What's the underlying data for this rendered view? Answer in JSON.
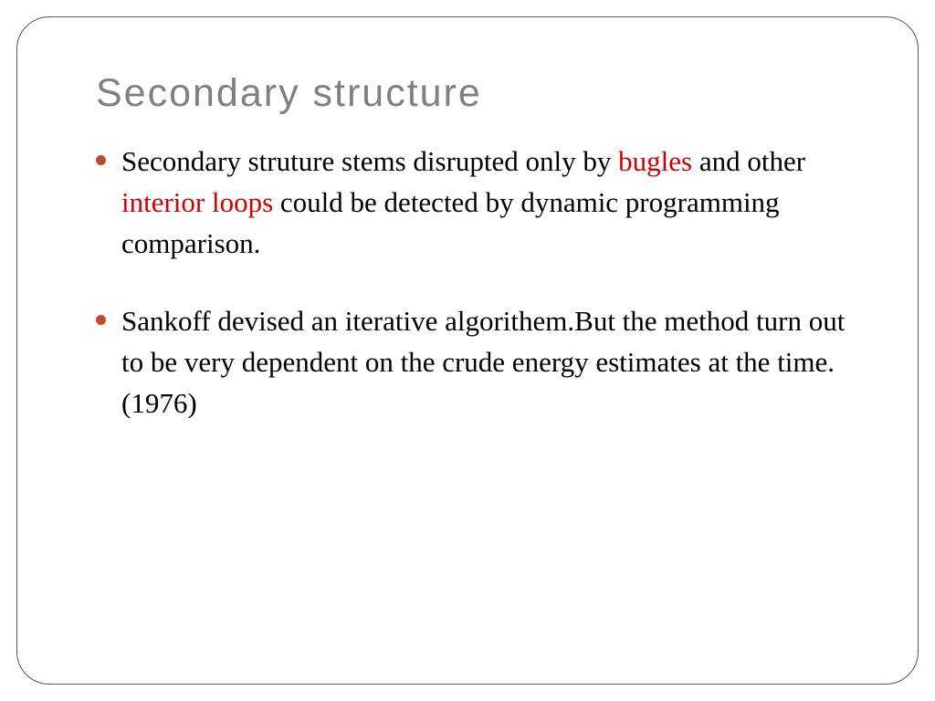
{
  "slide": {
    "title": "Secondary  structure",
    "title_color": "#808080",
    "title_fontsize": 43,
    "bullet_color": "#c2482d",
    "highlight_color": "#d10000",
    "body_color": "#000000",
    "body_fontsize": 31,
    "border_color": "#555555",
    "border_radius": 36,
    "background_color": "#ffffff",
    "bullets": [
      {
        "segments": [
          {
            "text": "Secondary struture stems disrupted only by ",
            "highlight": false
          },
          {
            "text": "bugles",
            "highlight": true
          },
          {
            "text": " and other ",
            "highlight": false
          },
          {
            "text": "interior loops",
            "highlight": true
          },
          {
            "text": " could be detected by dynamic programming comparison.",
            "highlight": false
          }
        ]
      },
      {
        "segments": [
          {
            "text": "Sankoff devised an iterative algorithem.But the method turn out to be very dependent on the crude energy estimates at the time.(1976)",
            "highlight": false
          }
        ]
      }
    ]
  }
}
